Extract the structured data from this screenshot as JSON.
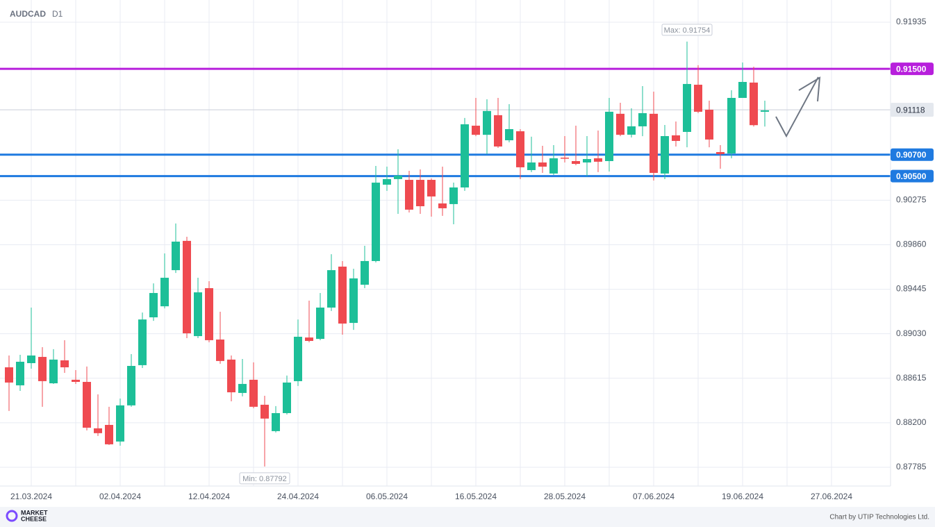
{
  "chart_data": {
    "type": "candlestick",
    "symbol": "AUDCAD",
    "timeframe": "D1",
    "categories": [
      null,
      null,
      "21.03.2024",
      null,
      null,
      null,
      null,
      null,
      null,
      null,
      "02.04.2024",
      null,
      null,
      null,
      null,
      null,
      null,
      null,
      "12.04.2024",
      null,
      null,
      null,
      null,
      null,
      null,
      null,
      "24.04.2024",
      null,
      null,
      null,
      null,
      null,
      null,
      null,
      "06.05.2024",
      null,
      null,
      null,
      null,
      null,
      null,
      null,
      "16.05.2024",
      null,
      null,
      null,
      null,
      null,
      null,
      null,
      "28.05.2024",
      null,
      null,
      null,
      null,
      null,
      null,
      null,
      "07.06.2024",
      null,
      null,
      null,
      null,
      null,
      null,
      null,
      "19.06.2024",
      null,
      null,
      null,
      null,
      null,
      null,
      null,
      "27.06.2024"
    ],
    "open": [
      0.88717,
      0.88549,
      0.88756,
      0.88814,
      0.88568,
      0.88782,
      0.88601,
      0.88581,
      0.88148,
      0.8818,
      0.88025,
      0.88362,
      0.88737,
      0.89183,
      0.89286,
      0.89623,
      0.89896,
      0.89008,
      0.89455,
      0.88976,
      0.88789,
      0.88478,
      0.88601,
      0.88368,
      0.88122,
      0.8829,
      0.88588,
      0.88995,
      0.88982,
      0.89274,
      0.89656,
      0.89131,
      0.89487,
      0.89708,
      0.9042,
      0.90472,
      0.90465,
      0.90465,
      0.90465,
      0.90245,
      0.90239,
      0.90394,
      0.9097,
      0.90885,
      0.91068,
      0.90834,
      0.90918,
      0.90556,
      0.90627,
      0.90524,
      0.90672,
      0.9064,
      0.90627,
      0.90666,
      0.9064,
      0.91081,
      0.90886,
      0.90964,
      0.91081,
      0.90524,
      0.9088,
      0.90912,
      0.91352,
      0.91119,
      0.90724,
      0.90711,
      0.91229,
      0.91372,
      0.911,
      null,
      null,
      null,
      null,
      null,
      null
    ],
    "high": [
      0.88827,
      0.88834,
      0.89274,
      0.88905,
      0.88886,
      0.8897,
      0.88691,
      0.88724,
      0.88465,
      0.88349,
      0.88426,
      0.8884,
      0.89228,
      0.895,
      0.89779,
      0.90058,
      0.89934,
      0.89552,
      0.8952,
      0.89235,
      0.88827,
      0.88795,
      0.88763,
      0.88452,
      0.88355,
      0.8864,
      0.89163,
      0.89339,
      0.8941,
      0.89772,
      0.89708,
      0.89636,
      0.8985,
      0.90595,
      0.90588,
      0.9075,
      0.90549,
      0.90562,
      0.90478,
      0.90588,
      0.90439,
      0.91042,
      0.91229,
      0.91216,
      0.91229,
      0.91171,
      0.90938,
      0.90867,
      0.90782,
      0.90789,
      0.90873,
      0.9097,
      0.90873,
      0.90925,
      0.91229,
      0.91184,
      0.91132,
      0.91339,
      0.91287,
      0.90977,
      0.91009,
      0.91754,
      0.91534,
      0.91203,
      0.90789,
      0.913,
      0.91559,
      0.9152,
      0.91203,
      null,
      null,
      null,
      null,
      null,
      null
    ],
    "low": [
      0.8831,
      0.88497,
      0.88704,
      0.88349,
      0.88562,
      0.88665,
      0.88562,
      0.88129,
      0.88077,
      0.87993,
      0.87986,
      0.88349,
      0.88711,
      0.8915,
      0.89267,
      0.89597,
      0.88989,
      0.88989,
      0.8895,
      0.8875,
      0.884,
      0.88446,
      0.88336,
      0.87792,
      0.88109,
      0.88277,
      0.88543,
      0.8895,
      0.8897,
      0.89242,
      0.89021,
      0.89066,
      0.89455,
      0.89695,
      0.90362,
      0.90148,
      0.90161,
      0.90148,
      0.90122,
      0.90129,
      0.90051,
      0.90362,
      0.90872,
      0.90705,
      0.90763,
      0.90815,
      0.90472,
      0.90537,
      0.9053,
      0.90511,
      0.90627,
      0.90601,
      0.90498,
      0.90537,
      0.90543,
      0.90872,
      0.9086,
      0.90872,
      0.90459,
      0.90472,
      0.90776,
      0.90769,
      0.91087,
      0.90769,
      0.90569,
      0.90666,
      0.91229,
      0.90962,
      0.90962,
      null,
      null,
      null,
      null,
      null,
      null
    ],
    "close": [
      0.88575,
      0.88769,
      0.88827,
      0.88588,
      0.88789,
      0.88717,
      0.88581,
      0.88154,
      0.88103,
      0.87999,
      0.88362,
      0.8873,
      0.89163,
      0.8941,
      0.89552,
      0.89889,
      0.89034,
      0.89416,
      0.8897,
      0.88776,
      0.88484,
      0.88562,
      0.88349,
      0.88239,
      0.8829,
      0.88575,
      0.89002,
      0.88963,
      0.89274,
      0.89623,
      0.89125,
      0.89546,
      0.89708,
      0.90439,
      0.90472,
      0.90504,
      0.90187,
      0.90219,
      0.9031,
      0.902,
      0.90394,
      0.90983,
      0.90885,
      0.91107,
      0.90776,
      0.90938,
      0.90582,
      0.90627,
      0.90588,
      0.90666,
      0.90666,
      0.90614,
      0.90659,
      0.90634,
      0.911,
      0.90885,
      0.90964,
      0.91087,
      0.9053,
      0.90873,
      0.90828,
      0.91359,
      0.911,
      0.90841,
      0.90705,
      0.91229,
      0.91378,
      0.90975,
      0.91113,
      null,
      null,
      null,
      null,
      null,
      null
    ],
    "up_color": "#1dbf98",
    "down_color": "#ef4a50",
    "ylim": [
      0.8761,
      0.92142
    ],
    "yticks": [
      0.91935,
      0.90275,
      {
        "value": 0.8986,
        "label": "0.89860"
      },
      0.89445,
      {
        "value": 0.8903,
        "label": "0.89030"
      },
      0.88615,
      {
        "value": 0.882,
        "label": "0.88200"
      },
      0.87785
    ],
    "grid": true,
    "levels": [
      {
        "value": 0.915,
        "label": "0.91500",
        "color": "#b71fdc"
      },
      {
        "value": 0.907,
        "label": "0.90700",
        "color": "#1f7ae0"
      },
      {
        "value": 0.905,
        "label": "0.90500",
        "color": "#1f7ae0"
      }
    ],
    "current_price": 0.91118,
    "annotations": {
      "max": "Max: 0.91754",
      "min": "Min: 0.87792"
    }
  },
  "footer": {
    "logo_top": "MARKET",
    "logo_bottom": "CHEESE",
    "credit": "Chart by UTIP Technologies Ltd."
  }
}
